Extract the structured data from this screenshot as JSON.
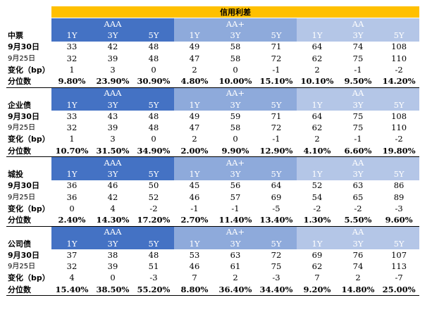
{
  "title": "信用利差",
  "grades": [
    "AAA",
    "AA+",
    "AA"
  ],
  "tenors": [
    "1Y",
    "3Y",
    "5Y"
  ],
  "row_labels": {
    "date1": "9月30日",
    "date2": "9月25日",
    "change": "变化（bp）",
    "percentile": "分位数"
  },
  "sections": [
    {
      "name": "中票",
      "d1": [
        "33",
        "42",
        "48",
        "49",
        "58",
        "71",
        "64",
        "74",
        "108"
      ],
      "d2": [
        "32",
        "39",
        "48",
        "47",
        "58",
        "72",
        "62",
        "75",
        "110"
      ],
      "chg": [
        "1",
        "3",
        "0",
        "2",
        "0",
        "-1",
        "2",
        "-1",
        "-2"
      ],
      "pct": [
        "9.80%",
        "23.90%",
        "30.90%",
        "4.80%",
        "10.00%",
        "15.10%",
        "10.10%",
        "9.50%",
        "14.20%"
      ]
    },
    {
      "name": "企业债",
      "d1": [
        "33",
        "43",
        "48",
        "49",
        "59",
        "71",
        "64",
        "75",
        "108"
      ],
      "d2": [
        "32",
        "39",
        "48",
        "47",
        "58",
        "72",
        "62",
        "75",
        "110"
      ],
      "chg": [
        "1",
        "3",
        "0",
        "2",
        "0",
        "-1",
        "2",
        "-1",
        "-2"
      ],
      "pct": [
        "10.70%",
        "31.50%",
        "34.90%",
        "2.00%",
        "9.90%",
        "12.90%",
        "4.10%",
        "6.60%",
        "19.80%"
      ]
    },
    {
      "name": "城投",
      "d1": [
        "36",
        "46",
        "50",
        "45",
        "56",
        "64",
        "52",
        "63",
        "86"
      ],
      "d2": [
        "36",
        "42",
        "52",
        "46",
        "57",
        "69",
        "54",
        "65",
        "89"
      ],
      "chg": [
        "0",
        "4",
        "-2",
        "-1",
        "-1",
        "-5",
        "-2",
        "-2",
        "-3"
      ],
      "pct": [
        "2.40%",
        "14.30%",
        "17.20%",
        "2.70%",
        "11.40%",
        "13.40%",
        "1.30%",
        "5.50%",
        "9.60%"
      ]
    },
    {
      "name": "公司债",
      "d1": [
        "37",
        "38",
        "48",
        "53",
        "63",
        "72",
        "69",
        "76",
        "107"
      ],
      "d2": [
        "32",
        "39",
        "51",
        "46",
        "61",
        "75",
        "62",
        "74",
        "113"
      ],
      "chg": [
        "4",
        "0",
        "-3",
        "7",
        "2",
        "-3",
        "7",
        "2",
        "-7"
      ],
      "pct": [
        "15.40%",
        "38.50%",
        "55.20%",
        "8.80%",
        "36.40%",
        "34.40%",
        "9.20%",
        "14.80%",
        "25.00%"
      ]
    }
  ]
}
